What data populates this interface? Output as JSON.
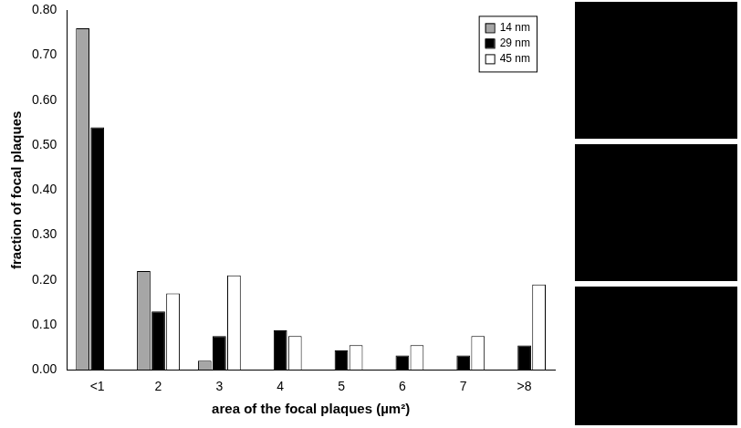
{
  "chart_data": {
    "type": "bar",
    "x_label": "area of the focal plaques (µm²)",
    "y_label": "fraction of focal plaques",
    "categories": [
      "<1",
      "2",
      "3",
      "4",
      "5",
      "6",
      "7",
      ">8"
    ],
    "series": [
      {
        "name": "14 nm",
        "color": "#a6a6a6",
        "values": [
          0.76,
          0.22,
          0.02,
          0,
          0,
          0,
          0,
          0
        ]
      },
      {
        "name": "29 nm",
        "color": "#000000",
        "values": [
          0.54,
          0.13,
          0.075,
          0.088,
          0.043,
          0.032,
          0.032,
          0.054
        ]
      },
      {
        "name": "45 nm",
        "color": "#ffffff",
        "values": [
          0,
          0.17,
          0.21,
          0.075,
          0.055,
          0.055,
          0.075,
          0.19
        ]
      }
    ],
    "ylim": [
      0,
      0.8
    ],
    "yticks": [
      {
        "value": 0,
        "label": "0.00"
      },
      {
        "value": 0.1,
        "label": "0.10"
      },
      {
        "value": 0.2,
        "label": "0.20"
      },
      {
        "value": 0.3,
        "label": "0.30"
      },
      {
        "value": 0.4,
        "label": "0.40"
      },
      {
        "value": 0.5,
        "label": "0.50"
      },
      {
        "value": 0.6,
        "label": "0.60"
      },
      {
        "value": 0.7,
        "label": "0.70"
      },
      {
        "value": 0.8,
        "label": "0.80"
      }
    ],
    "grid": false,
    "legend": "top-right"
  }
}
